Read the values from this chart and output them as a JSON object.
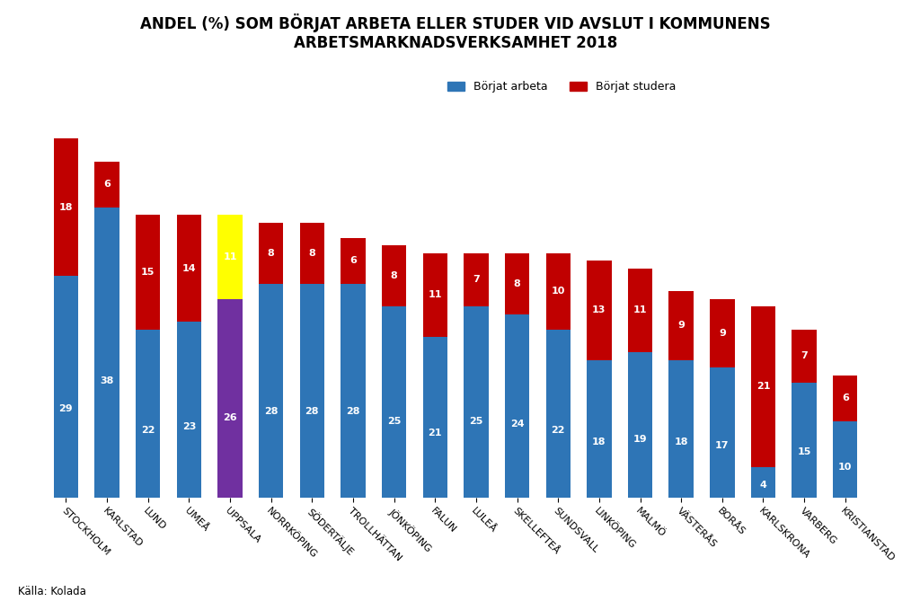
{
  "title": "ANDEL (%) SOM BÖRJAT ARBETA ELLER STUDER VID AVSLUT I KOMMUNENS\nARBETSMARKNADSVERKSAMHET 2018",
  "categories": [
    "STOCKHOLM",
    "KARLSTAD",
    "LUND",
    "UMEÅ",
    "UPPSALA",
    "NORRKÖPING",
    "SÖDERTÄLJE",
    "TROLLHÄTTAN",
    "JÖNKÖPING",
    "FALUN",
    "LULEÅ",
    "SKELLEFTEÅ",
    "SUNDSVALL",
    "LINKÖPING",
    "MALMÖ",
    "VÄSTERÅS",
    "BORÅS",
    "KARLSKRONA",
    "VARBERG",
    "KRISTIANSTAD"
  ],
  "work_values": [
    29,
    38,
    22,
    23,
    26,
    28,
    28,
    28,
    25,
    21,
    25,
    24,
    22,
    18,
    19,
    18,
    17,
    4,
    15,
    10
  ],
  "study_values": [
    18,
    6,
    15,
    14,
    11,
    8,
    8,
    6,
    8,
    11,
    7,
    8,
    10,
    13,
    11,
    9,
    9,
    21,
    7,
    6
  ],
  "work_colors": [
    "#2E75B6",
    "#2E75B6",
    "#2E75B6",
    "#2E75B6",
    "#7030A0",
    "#2E75B6",
    "#2E75B6",
    "#2E75B6",
    "#2E75B6",
    "#2E75B6",
    "#2E75B6",
    "#2E75B6",
    "#2E75B6",
    "#2E75B6",
    "#2E75B6",
    "#2E75B6",
    "#2E75B6",
    "#2E75B6",
    "#2E75B6",
    "#2E75B6"
  ],
  "study_colors": [
    "#C00000",
    "#C00000",
    "#C00000",
    "#C00000",
    "#FFFF00",
    "#C00000",
    "#C00000",
    "#C00000",
    "#C00000",
    "#C00000",
    "#C00000",
    "#C00000",
    "#C00000",
    "#C00000",
    "#C00000",
    "#C00000",
    "#C00000",
    "#C00000",
    "#C00000",
    "#C00000"
  ],
  "legend_work_color": "#2E75B6",
  "legend_study_color": "#C00000",
  "legend_work_label": "Börjat arbeta",
  "legend_study_label": "Börjat studera",
  "source_text": "Källa: Kolada",
  "background_color": "#FFFFFF",
  "grid_color": "#D9D9D9",
  "title_fontsize": 12,
  "label_fontsize": 9,
  "tick_fontsize": 8,
  "value_fontsize": 8
}
